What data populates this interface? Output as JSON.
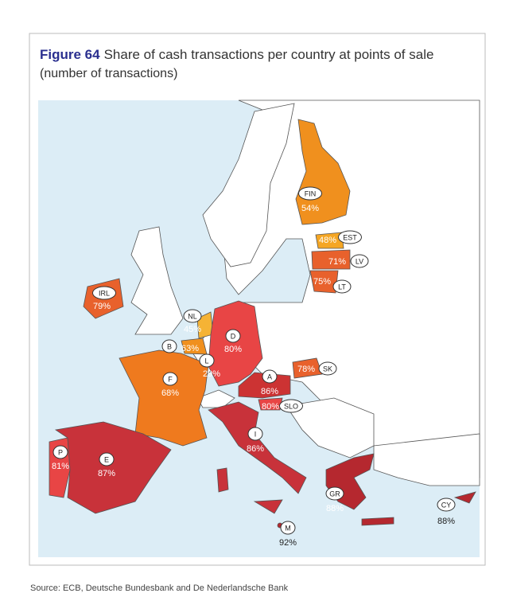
{
  "header": {
    "figure": "Figure 64",
    "title": "Share of cash transactions per country at points of sale",
    "subtitle": "(number of transactions)"
  },
  "countries": [
    {
      "code": "FIN",
      "share": "54%"
    },
    {
      "code": "EST",
      "share": "48%"
    },
    {
      "code": "LV",
      "share": "71%"
    },
    {
      "code": "LT",
      "share": "75%"
    },
    {
      "code": "IRL",
      "share": "79%"
    },
    {
      "code": "NL",
      "share": "45%"
    },
    {
      "code": "B",
      "share": "63%"
    },
    {
      "code": "L",
      "share": "29%"
    },
    {
      "code": "D",
      "share": "80%"
    },
    {
      "code": "F",
      "share": "68%"
    },
    {
      "code": "A",
      "share": "86%"
    },
    {
      "code": "SK",
      "share": "78%"
    },
    {
      "code": "SLO",
      "share": "80%"
    },
    {
      "code": "I",
      "share": "86%"
    },
    {
      "code": "P",
      "share": "81%"
    },
    {
      "code": "E",
      "share": "87%"
    },
    {
      "code": "GR",
      "share": "88%"
    },
    {
      "code": "CY",
      "share": "88%"
    },
    {
      "code": "M",
      "share": "92%"
    }
  ],
  "source": "Source: ECB, Deutsche Bundesbank and De Nederlandsche Bank"
}
